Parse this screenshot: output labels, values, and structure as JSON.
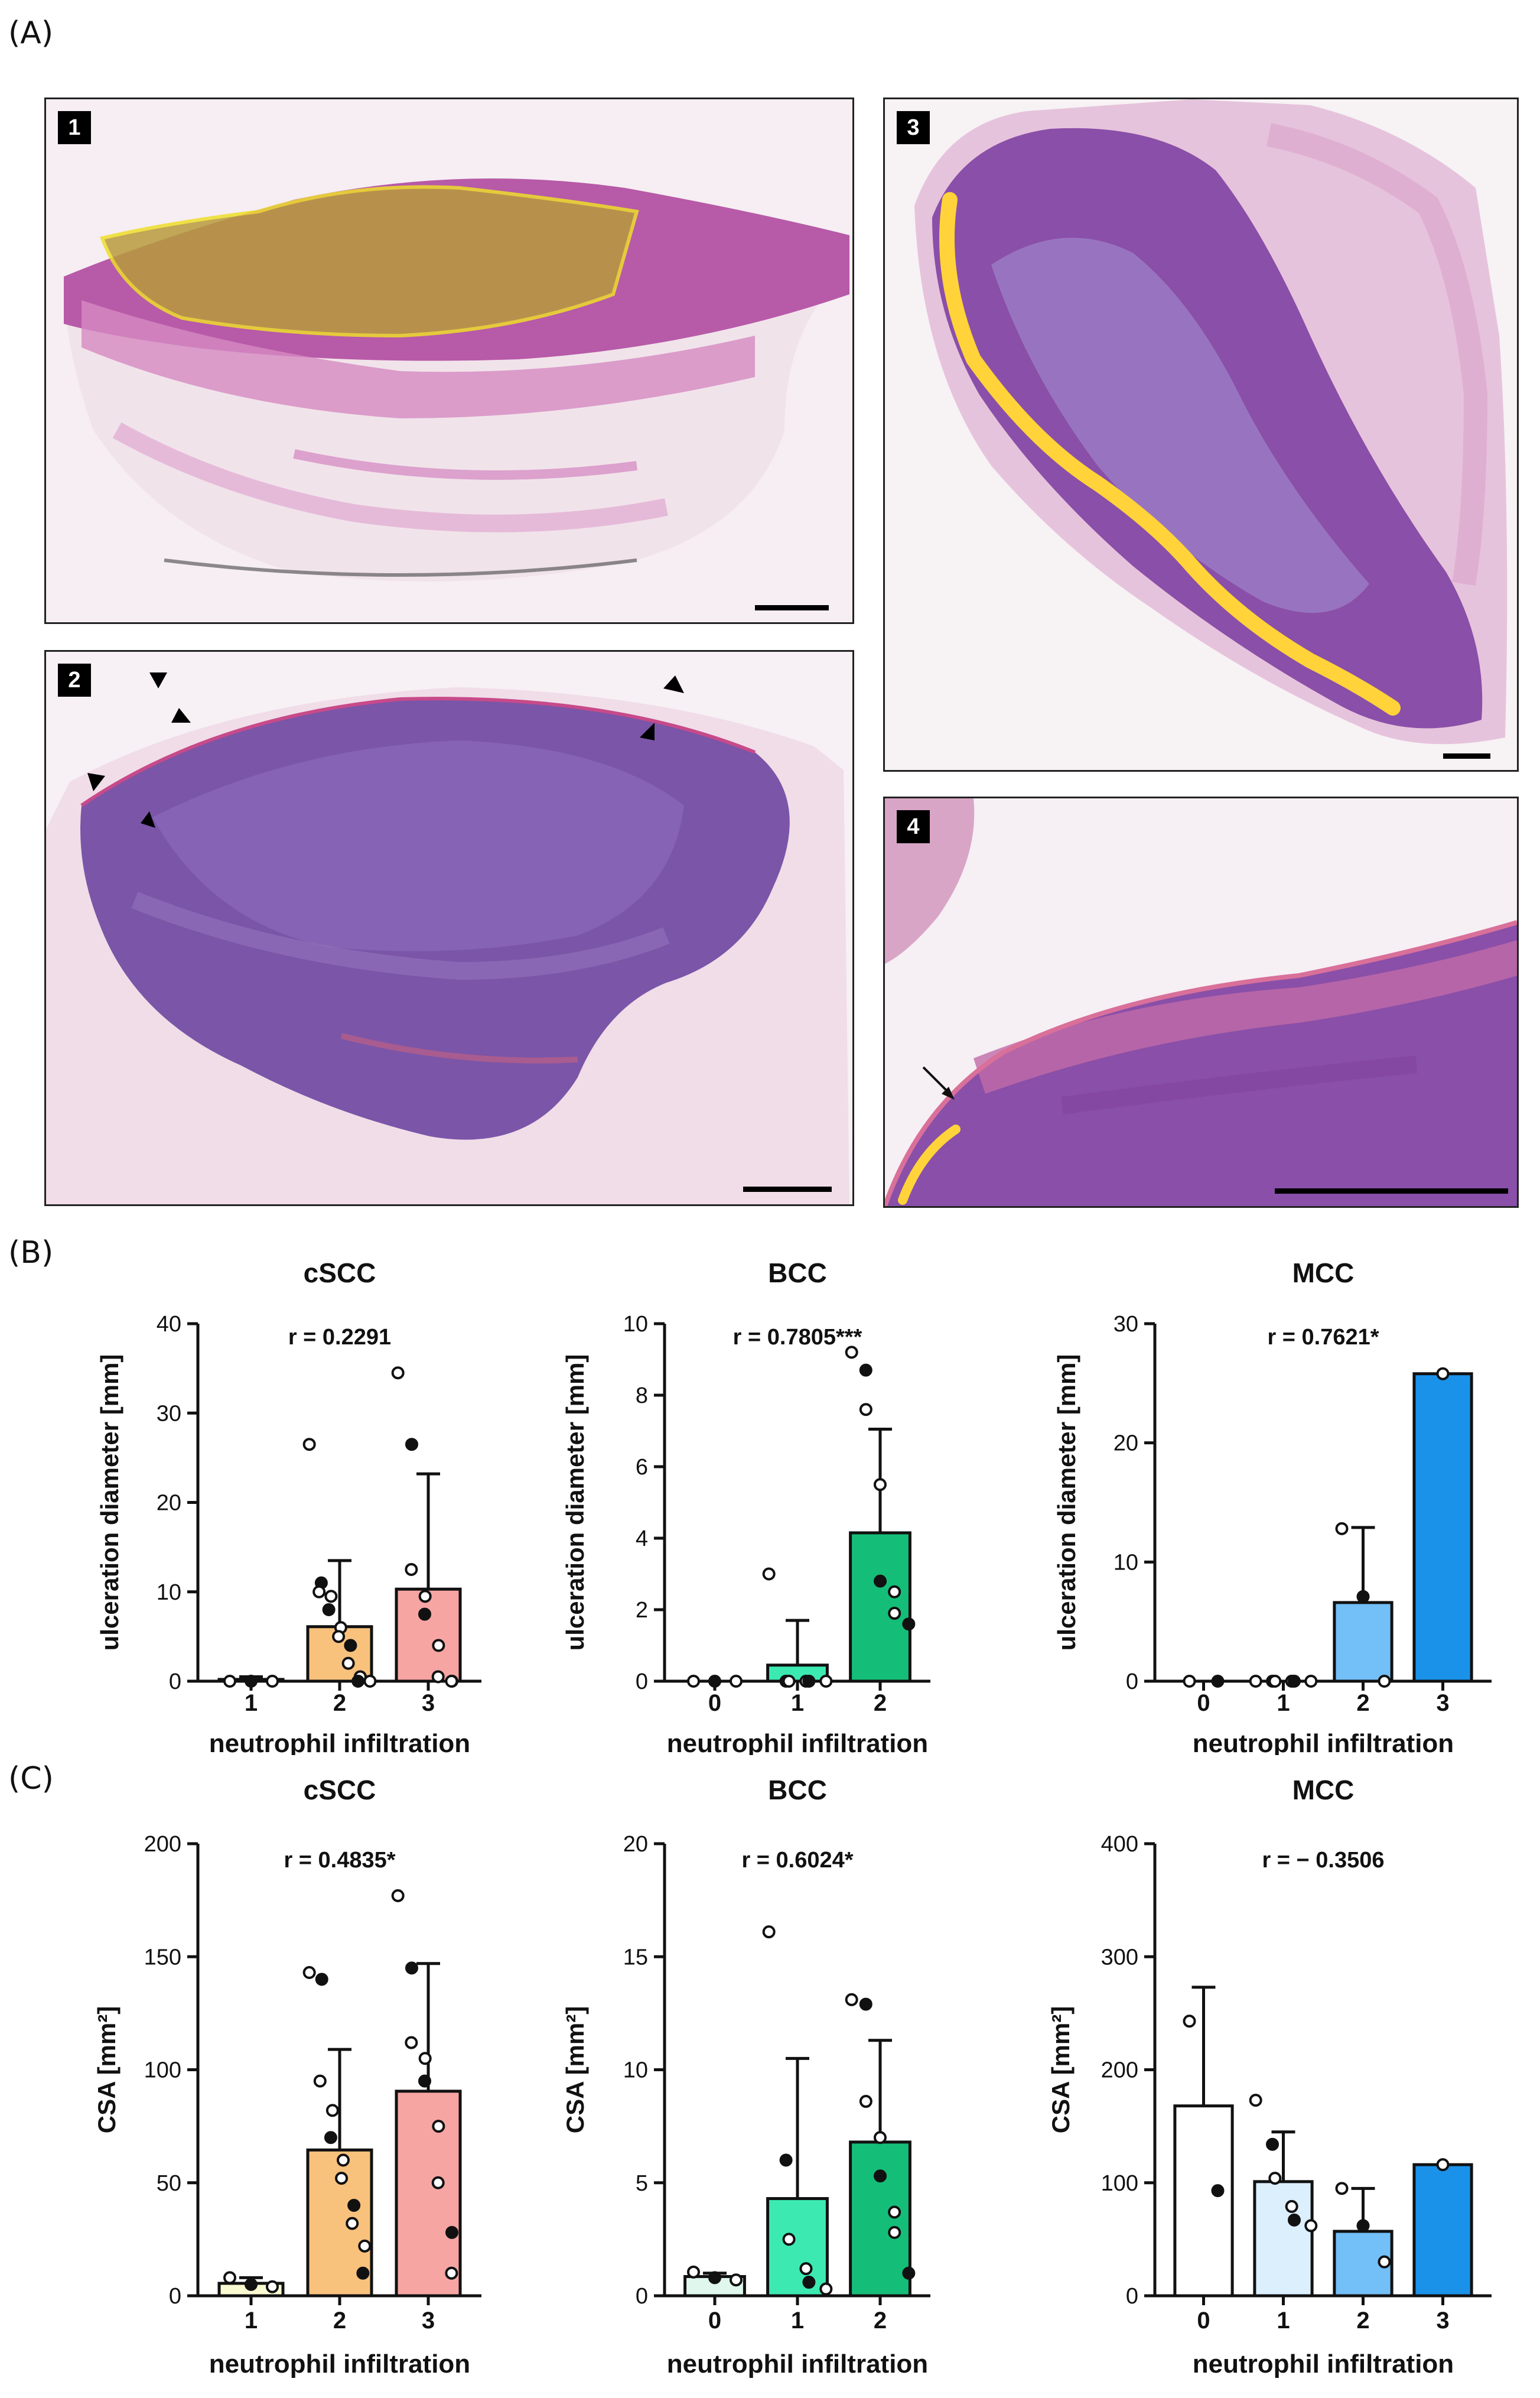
{
  "figure": {
    "panel_labels": [
      "(A)",
      "(B)",
      "(C)"
    ],
    "micrographs": [
      {
        "badge": "1",
        "annotation": "yellow-outlined-region"
      },
      {
        "badge": "2",
        "annotation": "arrowheads"
      },
      {
        "badge": "3",
        "annotation": "yellow-line"
      },
      {
        "badge": "4",
        "annotation": "arrow-and-yellow-line"
      }
    ]
  },
  "chart_data": [
    {
      "id": "B-cSCC",
      "type": "bar",
      "title": "cSCC",
      "ylabel": "ulceration diameter [mm]",
      "xlabel": "neutrophil infiltration",
      "ylim": [
        0,
        40
      ],
      "yticks": [
        0,
        10,
        20,
        30,
        40
      ],
      "annotation": "r = 0.2291",
      "categories": [
        "1",
        "2",
        "3"
      ],
      "values": [
        0.2,
        6.1,
        10.3
      ],
      "error": [
        0.3,
        7.4,
        12.9
      ],
      "colors": [
        "#fbfbd2",
        "#f8c17c",
        "#f6a5a3"
      ],
      "points": [
        [
          0,
          0,
          0
        ],
        [
          26.5,
          11,
          10,
          9.5,
          8,
          6,
          5,
          4,
          2,
          0.5,
          0,
          0
        ],
        [
          34.5,
          26.5,
          12.5,
          9.5,
          7.5,
          4,
          0.5,
          0,
          0
        ]
      ]
    },
    {
      "id": "B-BCC",
      "type": "bar",
      "title": "BCC",
      "ylabel": "ulceration diameter [mm]",
      "xlabel": "neutrophil infiltration",
      "ylim": [
        0,
        10
      ],
      "yticks": [
        0,
        2,
        4,
        6,
        8,
        10
      ],
      "annotation": "r = 0.7805***",
      "categories": [
        "0",
        "1",
        "2"
      ],
      "values": [
        0,
        0.45,
        4.15
      ],
      "error": [
        0,
        1.25,
        2.9
      ],
      "colors": [
        "#dff7ec",
        "#3ceab1",
        "#15be78"
      ],
      "points": [
        [
          0,
          0,
          0
        ],
        [
          3,
          0,
          0,
          0,
          0,
          0
        ],
        [
          9.2,
          8.7,
          7.6,
          5.5,
          2.8,
          2.5,
          1.9,
          1.6
        ]
      ]
    },
    {
      "id": "B-MCC",
      "type": "bar",
      "title": "MCC",
      "ylabel": "ulceration diameter [mm]",
      "xlabel": "neutrophil infiltration",
      "ylim": [
        0,
        30
      ],
      "yticks": [
        0,
        10,
        20,
        30
      ],
      "annotation": "r = 0.7621*",
      "categories": [
        "0",
        "1",
        "2",
        "3"
      ],
      "values": [
        0,
        0,
        6.6,
        25.8
      ],
      "error": [
        0,
        0,
        6.3,
        0
      ],
      "colors": [
        "#ffffff",
        "#dceffd",
        "#73bff7",
        "#1a92ea"
      ],
      "points": [
        [
          0,
          0
        ],
        [
          0,
          0,
          0,
          0,
          0,
          0
        ],
        [
          12.8,
          7.1,
          0
        ],
        [
          25.8
        ]
      ]
    },
    {
      "id": "C-cSCC",
      "type": "bar",
      "title": "cSCC",
      "ylabel": "CSA [mm²]",
      "xlabel": "neutrophil infiltration",
      "ylim": [
        0,
        200
      ],
      "yticks": [
        0,
        50,
        100,
        150,
        200
      ],
      "annotation": "r = 0.4835*",
      "categories": [
        "1",
        "2",
        "3"
      ],
      "values": [
        5.5,
        64.5,
        90.5
      ],
      "error": [
        2.5,
        44.5,
        56.5
      ],
      "colors": [
        "#fbfbd2",
        "#f8c17c",
        "#f6a5a3"
      ],
      "points": [
        [
          8,
          5,
          4
        ],
        [
          143,
          140,
          95,
          82,
          70,
          60,
          52,
          40,
          32,
          22,
          10
        ],
        [
          177,
          145,
          112,
          105,
          95,
          75,
          50,
          28,
          10
        ]
      ]
    },
    {
      "id": "C-BCC",
      "type": "bar",
      "title": "BCC",
      "ylabel": "CSA [mm²]",
      "xlabel": "neutrophil infiltration",
      "ylim": [
        0,
        20
      ],
      "yticks": [
        0,
        5,
        10,
        15,
        20
      ],
      "annotation": "r = 0.6024*",
      "categories": [
        "0",
        "1",
        "2"
      ],
      "values": [
        0.85,
        4.3,
        6.8
      ],
      "error": [
        0.15,
        6.2,
        4.5
      ],
      "colors": [
        "#dff7ec",
        "#3ceab1",
        "#15be78"
      ],
      "points": [
        [
          1.05,
          0.8,
          0.7
        ],
        [
          16.1,
          6.0,
          2.5,
          1.2,
          0.6,
          0.3
        ],
        [
          13.1,
          12.9,
          8.6,
          7.0,
          5.3,
          3.7,
          2.8,
          1.0
        ]
      ]
    },
    {
      "id": "C-MCC",
      "type": "bar",
      "title": "MCC",
      "ylabel": "CSA [mm²]",
      "xlabel": "neutrophil infiltration",
      "ylim": [
        0,
        400
      ],
      "yticks": [
        0,
        100,
        200,
        300,
        400
      ],
      "annotation": "r = − 0.3506",
      "categories": [
        "0",
        "1",
        "2",
        "3"
      ],
      "values": [
        168,
        101,
        57,
        116
      ],
      "error": [
        105,
        44,
        38,
        0
      ],
      "colors": [
        "#ffffff",
        "#dceffd",
        "#73bff7",
        "#1a92ea"
      ],
      "points": [
        [
          243,
          93
        ],
        [
          173,
          134,
          104,
          79,
          67,
          62
        ],
        [
          95,
          62,
          30
        ],
        [
          116
        ]
      ]
    }
  ]
}
